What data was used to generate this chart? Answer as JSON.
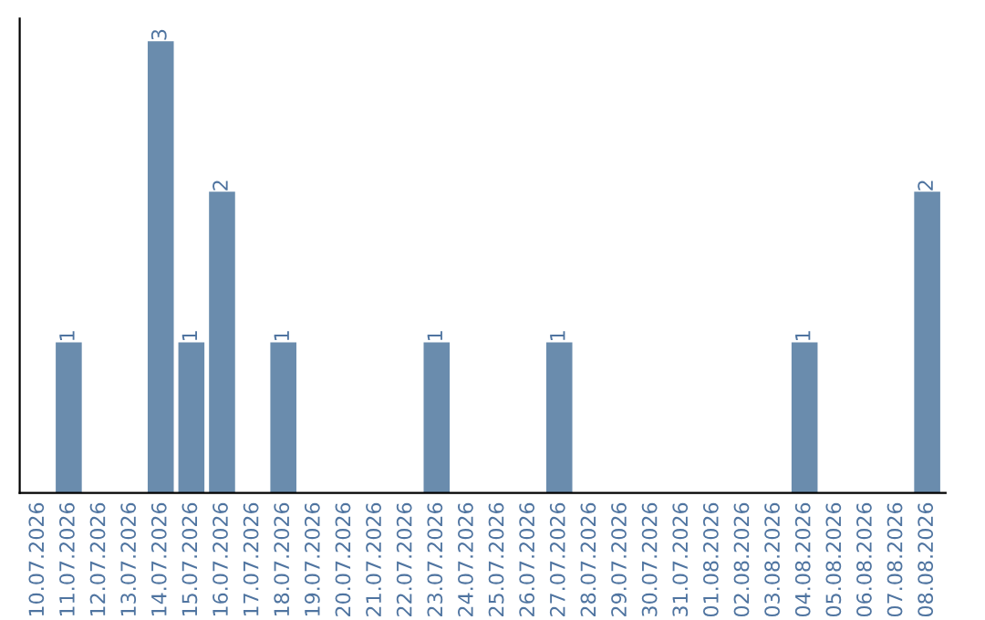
{
  "chart_data": {
    "type": "bar",
    "categories": [
      "10.07.2026",
      "11.07.2026",
      "12.07.2026",
      "13.07.2026",
      "14.07.2026",
      "15.07.2026",
      "16.07.2026",
      "17.07.2026",
      "18.07.2026",
      "19.07.2026",
      "20.07.2026",
      "21.07.2026",
      "22.07.2026",
      "23.07.2026",
      "24.07.2026",
      "25.07.2026",
      "26.07.2026",
      "27.07.2026",
      "28.07.2026",
      "29.07.2026",
      "30.07.2026",
      "31.07.2026",
      "01.08.2026",
      "02.08.2026",
      "03.08.2026",
      "04.08.2026",
      "05.08.2026",
      "06.08.2026",
      "07.08.2026",
      "08.08.2026"
    ],
    "values": [
      0,
      1,
      0,
      0,
      3,
      1,
      2,
      0,
      1,
      0,
      0,
      0,
      0,
      1,
      0,
      0,
      0,
      1,
      0,
      0,
      0,
      0,
      0,
      0,
      0,
      1,
      0,
      0,
      0,
      2
    ],
    "value_labels": [
      null,
      "1",
      null,
      null,
      "3",
      "1",
      "2",
      null,
      "1",
      null,
      null,
      null,
      null,
      "1",
      null,
      null,
      null,
      "1",
      null,
      null,
      null,
      null,
      null,
      null,
      null,
      "1",
      null,
      null,
      null,
      "2"
    ],
    "color": "#6a8cad",
    "tick_labels": "x",
    "grid": false,
    "legend": false
  }
}
